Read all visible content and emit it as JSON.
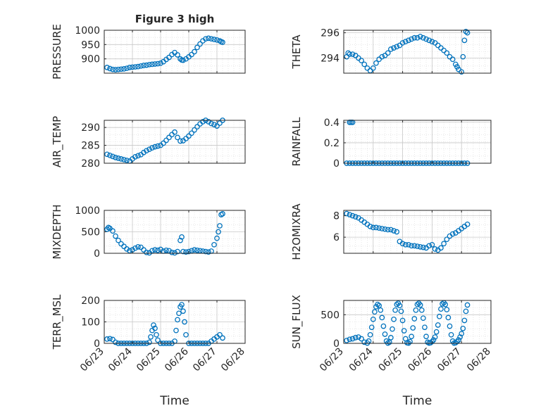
{
  "figure": {
    "title": "Figure 3 high",
    "xlabel": "Time",
    "xticks": [
      "06/23",
      "06/24",
      "06/25",
      "06/26",
      "06/27",
      "06/28"
    ],
    "marker_color": "#0072BD",
    "grid": true
  },
  "chart_data": [
    {
      "type": "scatter",
      "title": "Figure 3 high",
      "ylabel": "PRESSURE",
      "xlabel": "",
      "xlim": [
        0,
        5
      ],
      "ylim": [
        850,
        1000
      ],
      "yticks": [
        1000,
        950,
        900
      ],
      "x": [
        0.1,
        0.2,
        0.3,
        0.4,
        0.5,
        0.6,
        0.7,
        0.8,
        0.9,
        1.0,
        1.1,
        1.2,
        1.3,
        1.4,
        1.5,
        1.6,
        1.7,
        1.8,
        1.9,
        2.0,
        2.1,
        2.2,
        2.3,
        2.4,
        2.5,
        2.6,
        2.7,
        2.75,
        2.8,
        2.9,
        3.0,
        3.1,
        3.2,
        3.3,
        3.4,
        3.5,
        3.6,
        3.7,
        3.8,
        3.9,
        4.0,
        4.1,
        4.15,
        4.2
      ],
      "y": [
        870,
        866,
        863,
        862,
        863,
        864,
        865,
        867,
        870,
        871,
        872,
        873,
        875,
        877,
        878,
        880,
        881,
        882,
        883,
        885,
        890,
        898,
        905,
        915,
        922,
        914,
        900,
        896,
        895,
        900,
        907,
        915,
        925,
        940,
        952,
        963,
        970,
        972,
        970,
        968,
        966,
        963,
        960,
        958
      ]
    },
    {
      "type": "scatter",
      "ylabel": "THETA",
      "xlabel": "",
      "xlim": [
        0,
        5
      ],
      "ylim": [
        292.8,
        296.2
      ],
      "yticks": [
        296,
        294
      ],
      "x": [
        0.1,
        0.15,
        0.2,
        0.3,
        0.4,
        0.5,
        0.6,
        0.7,
        0.8,
        0.9,
        1.0,
        1.1,
        1.2,
        1.3,
        1.4,
        1.5,
        1.6,
        1.7,
        1.8,
        1.9,
        2.0,
        2.1,
        2.2,
        2.3,
        2.4,
        2.5,
        2.6,
        2.7,
        2.8,
        2.9,
        3.0,
        3.1,
        3.2,
        3.3,
        3.4,
        3.5,
        3.6,
        3.7,
        3.8,
        3.85,
        3.9,
        4.0,
        4.05,
        4.1,
        4.15,
        4.2
      ],
      "y": [
        294.1,
        294.4,
        294.3,
        294.3,
        294.2,
        294.0,
        293.8,
        293.5,
        293.2,
        293.0,
        293.2,
        293.6,
        293.9,
        294.1,
        294.2,
        294.4,
        294.7,
        294.8,
        294.9,
        295.0,
        295.2,
        295.3,
        295.4,
        295.5,
        295.6,
        295.6,
        295.7,
        295.6,
        295.5,
        295.4,
        295.3,
        295.2,
        295.0,
        294.8,
        294.6,
        294.4,
        294.1,
        293.9,
        293.5,
        293.3,
        293.1,
        292.9,
        294.1,
        295.4,
        296.1,
        296.0
      ]
    },
    {
      "type": "scatter",
      "ylabel": "AIR_TEMP",
      "xlabel": "",
      "xlim": [
        0,
        5
      ],
      "ylim": [
        280,
        292
      ],
      "yticks": [
        290,
        285,
        280
      ],
      "x": [
        0.1,
        0.2,
        0.3,
        0.4,
        0.5,
        0.6,
        0.7,
        0.8,
        0.9,
        1.0,
        1.1,
        1.2,
        1.3,
        1.4,
        1.5,
        1.6,
        1.7,
        1.8,
        1.9,
        2.0,
        2.1,
        2.2,
        2.3,
        2.4,
        2.5,
        2.6,
        2.7,
        2.8,
        2.9,
        3.0,
        3.1,
        3.2,
        3.3,
        3.4,
        3.5,
        3.6,
        3.7,
        3.8,
        3.9,
        4.0,
        4.1,
        4.2
      ],
      "y": [
        282.5,
        282.2,
        281.9,
        281.6,
        281.4,
        281.2,
        281.0,
        280.8,
        280.6,
        281.2,
        281.8,
        282.1,
        282.4,
        283.0,
        283.5,
        283.9,
        284.3,
        284.6,
        284.8,
        285.0,
        285.6,
        286.4,
        287.2,
        288.0,
        288.7,
        287.2,
        286.2,
        286.3,
        286.9,
        287.6,
        288.4,
        289.3,
        290.2,
        291.0,
        291.6,
        292.0,
        291.6,
        291.1,
        290.8,
        290.4,
        291.2,
        292.0
      ]
    },
    {
      "type": "scatter",
      "ylabel": "RAINFALL",
      "xlabel": "",
      "xlim": [
        0,
        5
      ],
      "ylim": [
        0,
        0.42
      ],
      "yticks": [
        0.4,
        0.2,
        0
      ],
      "x": [
        0.1,
        0.2,
        0.3,
        0.4,
        0.5,
        0.6,
        0.7,
        0.8,
        0.9,
        1.0,
        1.1,
        1.2,
        1.3,
        1.4,
        1.5,
        1.6,
        1.7,
        1.8,
        1.9,
        2.0,
        2.1,
        2.2,
        2.3,
        2.4,
        2.5,
        2.6,
        2.7,
        2.8,
        2.9,
        3.0,
        3.1,
        3.2,
        3.3,
        3.4,
        3.5,
        3.6,
        3.7,
        3.8,
        3.9,
        4.0,
        4.1,
        4.2,
        0.2,
        0.25,
        0.3
      ],
      "y": [
        0,
        0,
        0,
        0,
        0,
        0,
        0,
        0,
        0,
        0,
        0,
        0,
        0,
        0,
        0,
        0,
        0,
        0,
        0,
        0,
        0,
        0,
        0,
        0,
        0,
        0,
        0,
        0,
        0,
        0,
        0,
        0,
        0,
        0,
        0,
        0,
        0,
        0,
        0,
        0,
        0,
        0,
        0.4,
        0.4,
        0.4
      ]
    },
    {
      "type": "scatter",
      "ylabel": "MIXDEPTH",
      "xlabel": "",
      "xlim": [
        0,
        5
      ],
      "ylim": [
        0,
        1000
      ],
      "yticks": [
        1000,
        500,
        0
      ],
      "x": [
        0.1,
        0.15,
        0.2,
        0.3,
        0.4,
        0.5,
        0.6,
        0.7,
        0.8,
        0.9,
        1.0,
        1.1,
        1.2,
        1.3,
        1.4,
        1.5,
        1.6,
        1.7,
        1.8,
        1.9,
        2.0,
        2.1,
        2.2,
        2.3,
        2.4,
        2.5,
        2.6,
        2.7,
        2.75,
        2.8,
        2.9,
        3.0,
        3.1,
        3.2,
        3.3,
        3.4,
        3.5,
        3.6,
        3.7,
        3.8,
        3.9,
        4.0,
        4.05,
        4.1,
        4.15,
        4.2
      ],
      "y": [
        560,
        600,
        580,
        520,
        400,
        300,
        220,
        160,
        100,
        60,
        80,
        120,
        150,
        140,
        80,
        20,
        10,
        60,
        80,
        70,
        90,
        50,
        70,
        60,
        20,
        10,
        40,
        300,
        380,
        40,
        30,
        40,
        60,
        80,
        70,
        60,
        50,
        40,
        30,
        50,
        200,
        350,
        500,
        640,
        900,
        920
      ]
    },
    {
      "type": "scatter",
      "ylabel": "H2OMIXRA",
      "xlabel": "",
      "xlim": [
        0,
        5
      ],
      "ylim": [
        4.5,
        8.5
      ],
      "yticks": [
        8,
        6
      ],
      "x": [
        0.1,
        0.2,
        0.3,
        0.4,
        0.5,
        0.6,
        0.7,
        0.8,
        0.9,
        1.0,
        1.1,
        1.2,
        1.3,
        1.4,
        1.5,
        1.6,
        1.7,
        1.8,
        1.9,
        2.0,
        2.1,
        2.2,
        2.3,
        2.4,
        2.5,
        2.6,
        2.7,
        2.8,
        2.9,
        3.0,
        3.1,
        3.2,
        3.3,
        3.4,
        3.5,
        3.6,
        3.7,
        3.8,
        3.9,
        4.0,
        4.1,
        4.2
      ],
      "y": [
        8.2,
        8.1,
        8.0,
        7.9,
        7.8,
        7.6,
        7.4,
        7.2,
        7.0,
        6.9,
        6.9,
        6.85,
        6.8,
        6.75,
        6.7,
        6.7,
        6.6,
        6.5,
        5.6,
        5.4,
        5.3,
        5.3,
        5.2,
        5.2,
        5.15,
        5.1,
        5.05,
        5.0,
        5.2,
        5.3,
        4.9,
        4.8,
        5.0,
        5.4,
        5.8,
        6.1,
        6.3,
        6.4,
        6.6,
        6.8,
        7.0,
        7.2
      ]
    },
    {
      "type": "scatter",
      "ylabel": "TERR_MSL",
      "xlabel": "",
      "xlim": [
        0,
        5
      ],
      "ylim": [
        0,
        200
      ],
      "yticks": [
        200,
        100,
        0
      ],
      "x": [
        0.1,
        0.2,
        0.3,
        0.4,
        0.5,
        0.6,
        0.7,
        0.8,
        0.9,
        1.0,
        1.1,
        1.2,
        1.3,
        1.4,
        1.5,
        1.6,
        1.65,
        1.7,
        1.75,
        1.8,
        1.85,
        1.9,
        2.0,
        2.1,
        2.2,
        2.3,
        2.4,
        2.5,
        2.55,
        2.6,
        2.65,
        2.7,
        2.75,
        2.8,
        2.85,
        2.9,
        3.0,
        3.1,
        3.2,
        3.3,
        3.4,
        3.5,
        3.6,
        3.7,
        3.8,
        3.9,
        4.0,
        4.1,
        4.2
      ],
      "y": [
        20,
        22,
        18,
        5,
        0,
        0,
        0,
        0,
        0,
        0,
        0,
        0,
        0,
        0,
        0,
        5,
        30,
        60,
        85,
        70,
        40,
        15,
        0,
        0,
        0,
        0,
        0,
        10,
        60,
        110,
        140,
        170,
        180,
        150,
        100,
        40,
        0,
        0,
        0,
        0,
        0,
        0,
        0,
        0,
        10,
        20,
        30,
        40,
        25
      ]
    },
    {
      "type": "scatter",
      "ylabel": "SUN_FLUX",
      "xlabel": "",
      "xlim": [
        0,
        5
      ],
      "ylim": [
        0,
        750
      ],
      "yticks": [
        500,
        0
      ],
      "x": [
        0.1,
        0.2,
        0.3,
        0.4,
        0.5,
        0.6,
        0.7,
        0.8,
        0.85,
        0.9,
        0.95,
        1.0,
        1.05,
        1.1,
        1.15,
        1.2,
        1.25,
        1.3,
        1.35,
        1.4,
        1.45,
        1.5,
        1.55,
        1.6,
        1.65,
        1.7,
        1.75,
        1.8,
        1.85,
        1.9,
        1.95,
        2.0,
        2.05,
        2.1,
        2.15,
        2.2,
        2.25,
        2.3,
        2.35,
        2.4,
        2.45,
        2.5,
        2.55,
        2.6,
        2.65,
        2.7,
        2.75,
        2.8,
        2.85,
        2.9,
        2.95,
        3.0,
        3.05,
        3.1,
        3.15,
        3.2,
        3.25,
        3.3,
        3.35,
        3.4,
        3.45,
        3.5,
        3.55,
        3.6,
        3.65,
        3.7,
        3.75,
        3.8,
        3.85,
        3.9,
        3.95,
        4.0,
        4.05,
        4.1,
        4.15,
        4.2
      ],
      "y": [
        50,
        70,
        80,
        100,
        110,
        80,
        20,
        5,
        40,
        150,
        280,
        420,
        550,
        640,
        680,
        660,
        580,
        450,
        300,
        160,
        40,
        5,
        20,
        100,
        250,
        420,
        580,
        680,
        700,
        660,
        560,
        400,
        220,
        80,
        10,
        5,
        30,
        120,
        270,
        430,
        580,
        680,
        700,
        670,
        580,
        440,
        280,
        120,
        20,
        5,
        10,
        30,
        60,
        110,
        200,
        320,
        470,
        600,
        690,
        710,
        680,
        590,
        450,
        300,
        150,
        40,
        5,
        10,
        30,
        60,
        110,
        170,
        260,
        400,
        560,
        670
      ]
    }
  ]
}
